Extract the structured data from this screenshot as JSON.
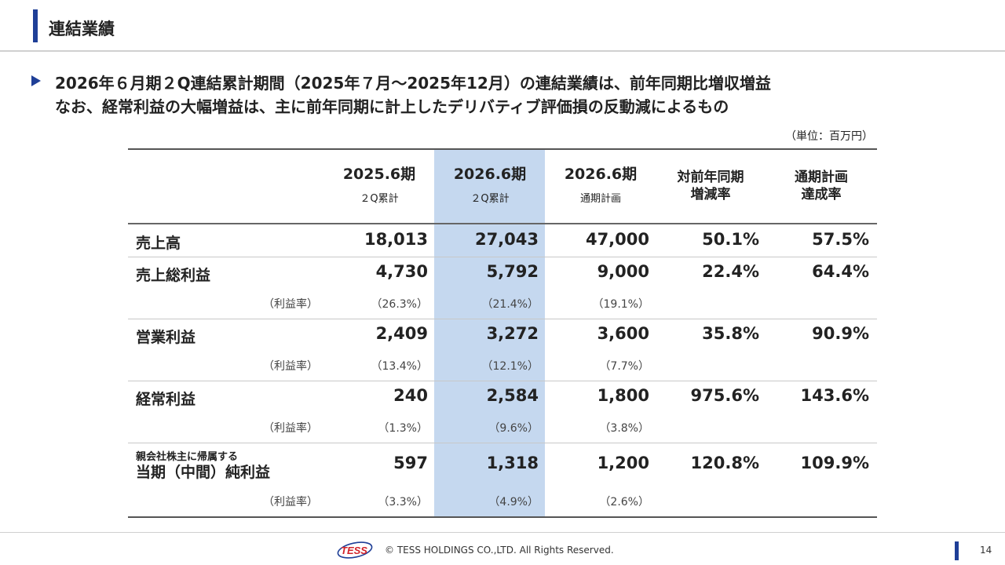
{
  "header": {
    "title": "連結業績"
  },
  "lead": {
    "line1": "2026年６月期２Q連結累計期間（2025年７月～2025年12月）の連結業績は、前年同期比増収増益",
    "line2": "なお、経常利益の大幅増益は、主に前年同期に計上したデリバティブ評価損の反動減によるもの"
  },
  "unit": "（単位：百万円）",
  "columns": [
    {
      "main": "2025.6期",
      "sub": "２Q累計"
    },
    {
      "main": "2026.6期",
      "sub": "２Q累計"
    },
    {
      "main": "2026.6期",
      "sub": "通期計画"
    },
    {
      "line1": "対前年同期",
      "line2": "増減率"
    },
    {
      "line1": "通期計画",
      "line2": "達成率"
    }
  ],
  "rows": [
    {
      "label": "売上高",
      "values": [
        "18,013",
        "27,043",
        "47,000",
        "50.1%",
        "57.5%"
      ]
    },
    {
      "label": "売上総利益",
      "values": [
        "4,730",
        "5,792",
        "9,000",
        "22.4%",
        "64.4%"
      ],
      "ratio_label": "（利益率）",
      "ratios": [
        "（26.3%）",
        "（21.4%）",
        "（19.1%）"
      ]
    },
    {
      "label": "営業利益",
      "values": [
        "2,409",
        "3,272",
        "3,600",
        "35.8%",
        "90.9%"
      ],
      "ratio_label": "（利益率）",
      "ratios": [
        "（13.4%）",
        "（12.1%）",
        "（7.7%）"
      ]
    },
    {
      "label": "経常利益",
      "values": [
        "240",
        "2,584",
        "1,800",
        "975.6%",
        "143.6%"
      ],
      "ratio_label": "（利益率）",
      "ratios": [
        "（1.3%）",
        "（9.6%）",
        "（3.8%）"
      ]
    },
    {
      "label_small": "親会社株主に帰属する",
      "label": "当期（中間）純利益",
      "values": [
        "597",
        "1,318",
        "1,200",
        "120.8%",
        "109.9%"
      ],
      "ratio_label": "（利益率）",
      "ratios": [
        "（3.3%）",
        "（4.9%）",
        "（2.6%）"
      ]
    }
  ],
  "footer": {
    "logo_text": "TESS",
    "copyright": "© TESS HOLDINGS CO.,LTD. All Rights Reserved.",
    "page_number": "14"
  },
  "colors": {
    "accent": "#1f3f97",
    "highlight": "#c5d8ef",
    "logo_red": "#d2232a"
  }
}
